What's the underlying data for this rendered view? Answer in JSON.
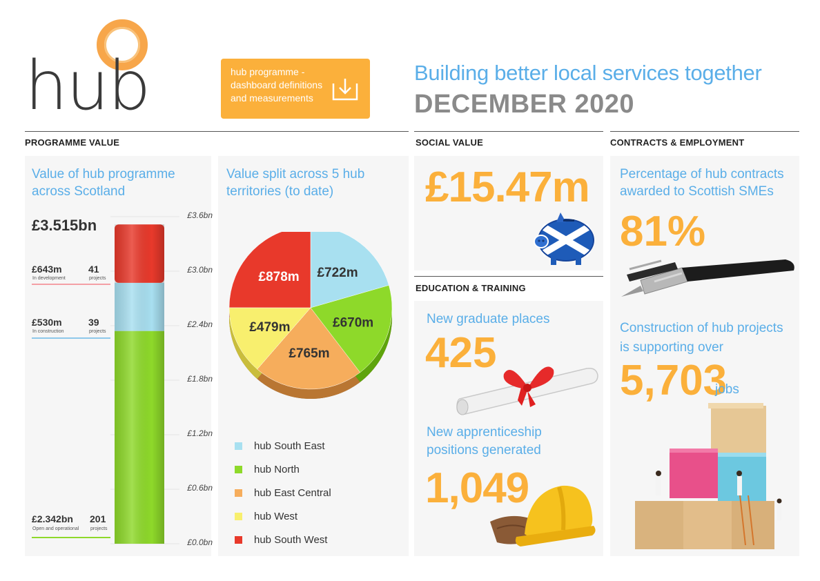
{
  "logo": {
    "text": "hub"
  },
  "definitions_button": {
    "label": "hub programme - dashboard definitions and measurements",
    "icon": "download-icon"
  },
  "header": {
    "tagline": "Building better local services together",
    "date": "DECEMBER 2020"
  },
  "sections": {
    "programme_value": "PROGRAMME VALUE",
    "social_value": "SOCIAL VALUE",
    "contracts": "CONTRACTS & EMPLOYMENT",
    "education": "EDUCATION & TRAINING"
  },
  "programme": {
    "title": "Value of hub programme across Scotland",
    "total": "£3.515bn",
    "rows": [
      {
        "value": "£643m",
        "label": "In development",
        "count": "41",
        "count_label": "projects",
        "color": "#e74c3c"
      },
      {
        "value": "£530m",
        "label": "In construction",
        "count": "39",
        "count_label": "projects",
        "color": "#a8d8ea"
      },
      {
        "value": "£2.342bn",
        "label": "Open and operational",
        "count": "201",
        "count_label": "projects",
        "color": "#8ed92a"
      }
    ],
    "ticks": [
      "£3.6bn",
      "£3.0bn",
      "£2.4bn",
      "£1.8bn",
      "£1.2bn",
      "£0.6bn",
      "£0.0bn"
    ]
  },
  "territories": {
    "title": "Value split across 5 hub territories (to date)"
  },
  "chart_data": [
    {
      "type": "bar",
      "title": "Value of hub programme across Scotland",
      "ylim": [
        0,
        3.6
      ],
      "ytick_labels": [
        "£0.0bn",
        "£0.6bn",
        "£1.2bn",
        "£1.8bn",
        "£2.4bn",
        "£3.0bn",
        "£3.6bn"
      ],
      "stacked": true,
      "series": [
        {
          "name": "Open and operational",
          "values": [
            2.342
          ],
          "color": "#8ed92a"
        },
        {
          "name": "In construction",
          "values": [
            0.53
          ],
          "color": "#a8dff0"
        },
        {
          "name": "In development",
          "values": [
            0.643
          ],
          "color": "#e8392b"
        }
      ]
    },
    {
      "type": "pie",
      "title": "Value split across 5 hub territories (to date)",
      "slices": [
        {
          "name": "hub South East",
          "value": 722,
          "label": "£722m",
          "color": "#a8e0f0"
        },
        {
          "name": "hub North",
          "value": 670,
          "label": "£670m",
          "color": "#8ed92a"
        },
        {
          "name": "hub East Central",
          "value": 765,
          "label": "£765m",
          "color": "#f6ad5c"
        },
        {
          "name": "hub West",
          "value": 479,
          "label": "£479m",
          "color": "#f8ef6e"
        },
        {
          "name": "hub South West",
          "value": 878,
          "label": "£878m",
          "color": "#e8392b"
        }
      ],
      "legend": "bottom"
    }
  ],
  "social": {
    "value": "£15.47m"
  },
  "education": {
    "graduate_title": "New graduate places",
    "graduate_value": "425",
    "apprentice_title": "New apprenticeship positions generated",
    "apprentice_value": "1,049"
  },
  "contracts": {
    "sme_title": "Percentage of hub contracts awarded to Scottish SMEs",
    "sme_value": "81%",
    "jobs_title": "Construction of hub projects is supporting over",
    "jobs_value": "5,703",
    "jobs_unit": "jobs"
  }
}
